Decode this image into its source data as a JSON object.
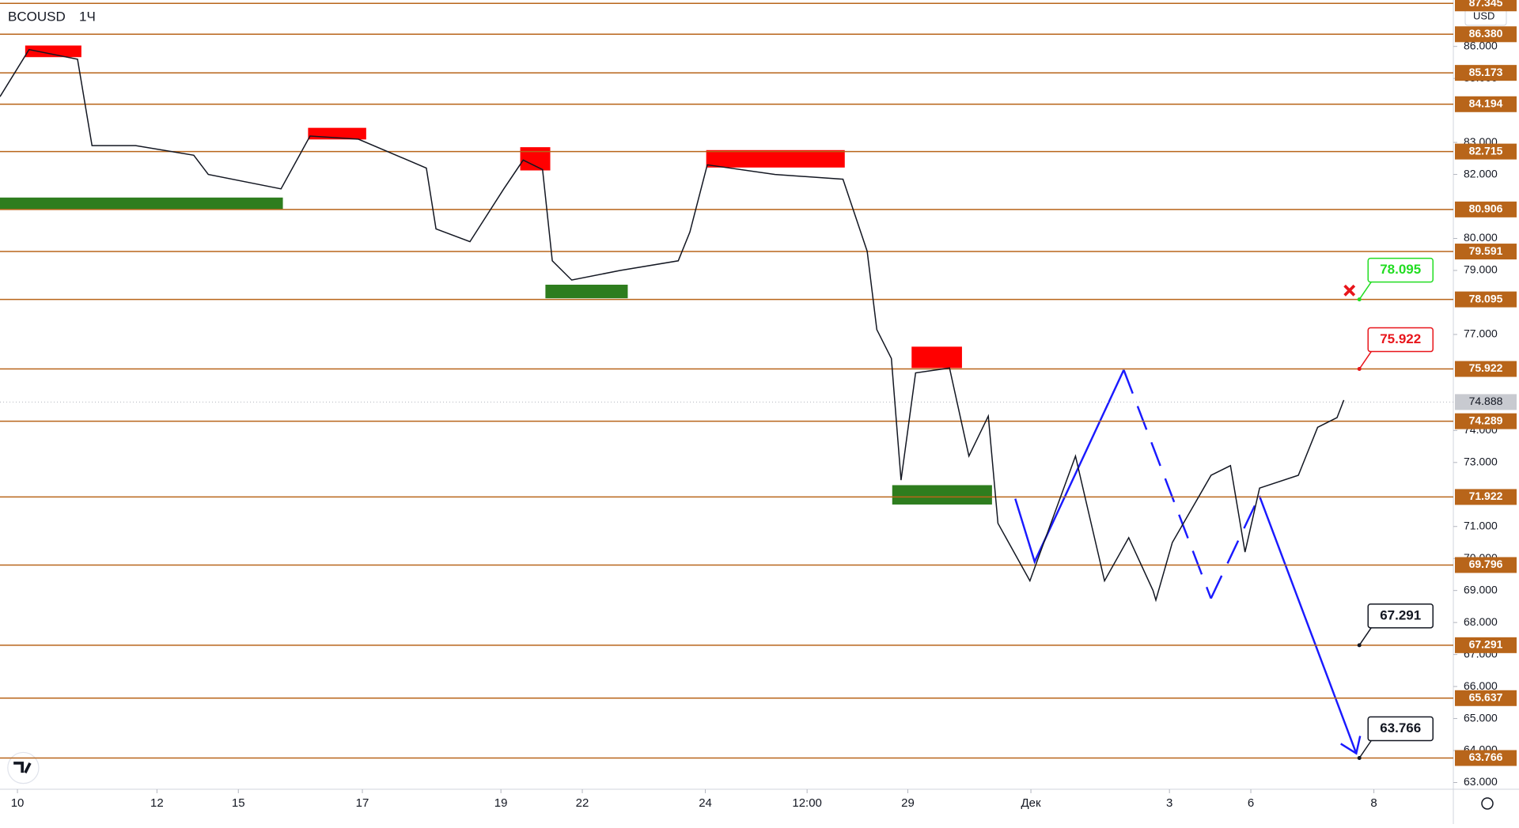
{
  "chart_data": {
    "type": "line",
    "title": "BCOUSD",
    "interval": "1Ч",
    "currency": "USD",
    "x": [
      0,
      30,
      80,
      95,
      140,
      200,
      215,
      290,
      320,
      370,
      440,
      450,
      485,
      520,
      540,
      560,
      570,
      590,
      640,
      700,
      712,
      730,
      800,
      870,
      895,
      905,
      920,
      930,
      945,
      980,
      1000,
      1020,
      1030,
      1063,
      1110,
      1140,
      1165,
      1190,
      1193,
      1210,
      1250,
      1270,
      1285,
      1300,
      1340,
      1360,
      1380,
      1387
    ],
    "series": [
      {
        "color": "#131722",
        "values": [
          84.43,
          85.9,
          85.6,
          82.9,
          82.9,
          82.6,
          82.0,
          81.55,
          83.2,
          83.1,
          82.2,
          80.3,
          79.9,
          81.55,
          82.45,
          82.15,
          79.3,
          78.7,
          79.0,
          79.3,
          80.2,
          82.3,
          82.0,
          81.85,
          79.6,
          77.15,
          76.25,
          72.45,
          75.8,
          75.95,
          73.2,
          74.45,
          71.1,
          69.3,
          73.2,
          69.3,
          70.65,
          69.0,
          68.7,
          70.5,
          72.6,
          72.9,
          70.2,
          72.2,
          72.6,
          74.1,
          74.4,
          74.95
        ]
      }
    ],
    "xlim": [
      0,
      1500
    ],
    "ylim": [
      62.79,
      87.45
    ],
    "xticks": [
      {
        "value": 18,
        "label": "10"
      },
      {
        "value": 162,
        "label": "12"
      },
      {
        "value": 246,
        "label": "15"
      },
      {
        "value": 374,
        "label": "17"
      },
      {
        "value": 517,
        "label": "19"
      },
      {
        "value": 601,
        "label": "22"
      },
      {
        "value": 728,
        "label": "24"
      },
      {
        "value": 833,
        "label": "12:00"
      },
      {
        "value": 937,
        "label": "29"
      },
      {
        "value": 1064,
        "label": "Дек"
      },
      {
        "value": 1207,
        "label": "3"
      },
      {
        "value": 1291,
        "label": "6"
      },
      {
        "value": 1418,
        "label": "8"
      }
    ],
    "yticks": [
      {
        "value": 63,
        "label": "63.000"
      },
      {
        "value": 64,
        "label": "64.000"
      },
      {
        "value": 65,
        "label": "65.000"
      },
      {
        "value": 66,
        "label": "66.000"
      },
      {
        "value": 67,
        "label": "67.000"
      },
      {
        "value": 68,
        "label": "68.000"
      },
      {
        "value": 69,
        "label": "69.000"
      },
      {
        "value": 70,
        "label": "70.000"
      },
      {
        "value": 71,
        "label": "71.000"
      },
      {
        "value": 73,
        "label": "73.000"
      },
      {
        "value": 74,
        "label": "74.000"
      },
      {
        "value": 77,
        "label": "77.000"
      },
      {
        "value": 79,
        "label": "79.000"
      },
      {
        "value": 80,
        "label": "80.000"
      },
      {
        "value": 82,
        "label": "82.000"
      },
      {
        "value": 83,
        "label": "83.000"
      },
      {
        "value": 85,
        "label": "85.000"
      },
      {
        "value": 86,
        "label": "86.000"
      }
    ],
    "level_color": "#b8651a",
    "levels": [
      {
        "value": 87.345,
        "label": "87.345"
      },
      {
        "value": 86.38,
        "label": "86.380"
      },
      {
        "value": 85.173,
        "label": "85.173"
      },
      {
        "value": 84.194,
        "label": "84.194"
      },
      {
        "value": 82.715,
        "label": "82.715"
      },
      {
        "value": 80.906,
        "label": "80.906"
      },
      {
        "value": 79.591,
        "label": "79.591"
      },
      {
        "value": 78.095,
        "label": "78.095"
      },
      {
        "value": 75.922,
        "label": "75.922"
      },
      {
        "value": 74.289,
        "label": "74.289"
      },
      {
        "value": 71.922,
        "label": "71.922"
      },
      {
        "value": 69.796,
        "label": "69.796"
      },
      {
        "value": 67.291,
        "label": "67.291"
      },
      {
        "value": 65.637,
        "label": "65.637"
      },
      {
        "value": 63.766,
        "label": "63.766"
      }
    ],
    "last_price": {
      "value": 74.888,
      "label": "74.888"
    },
    "callouts": [
      {
        "value": 78.095,
        "label": "78.095",
        "color": "#22dd22"
      },
      {
        "value": 75.922,
        "label": "75.922",
        "color": "#e8151b"
      },
      {
        "value": 67.291,
        "label": "67.291",
        "color": "#131722"
      },
      {
        "value": 63.766,
        "label": "63.766",
        "color": "#131722"
      }
    ]
  }
}
